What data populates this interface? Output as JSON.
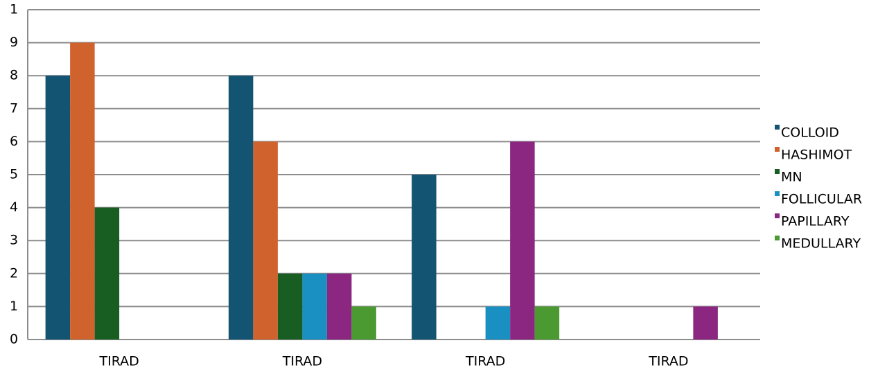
{
  "chart_data": {
    "type": "bar",
    "categories": [
      "TIRAD",
      "TIRAD",
      "TIRAD",
      "TIRAD"
    ],
    "series": [
      {
        "name": "COLLOID",
        "color": "#145473",
        "values": [
          8,
          8,
          5,
          0
        ]
      },
      {
        "name": "HASHIMOT",
        "color": "#d0632d",
        "values": [
          9,
          6,
          0,
          0
        ]
      },
      {
        "name": "MN",
        "color": "#185e22",
        "values": [
          4,
          2,
          0,
          0
        ]
      },
      {
        "name": "FOLLICULAR",
        "color": "#1a8fc1",
        "values": [
          0,
          2,
          1,
          0
        ]
      },
      {
        "name": "PAPILLARY",
        "color": "#8b2681",
        "values": [
          0,
          2,
          6,
          1
        ]
      },
      {
        "name": "MEDULLARY",
        "color": "#4a9931",
        "values": [
          0,
          1,
          1,
          0
        ]
      }
    ],
    "ylim": [
      0,
      10
    ],
    "yticks": [
      0,
      1,
      2,
      3,
      4,
      5,
      6,
      7,
      8,
      9,
      {
        "value": 10,
        "label": "1"
      }
    ],
    "grid": true,
    "legend": "right"
  }
}
